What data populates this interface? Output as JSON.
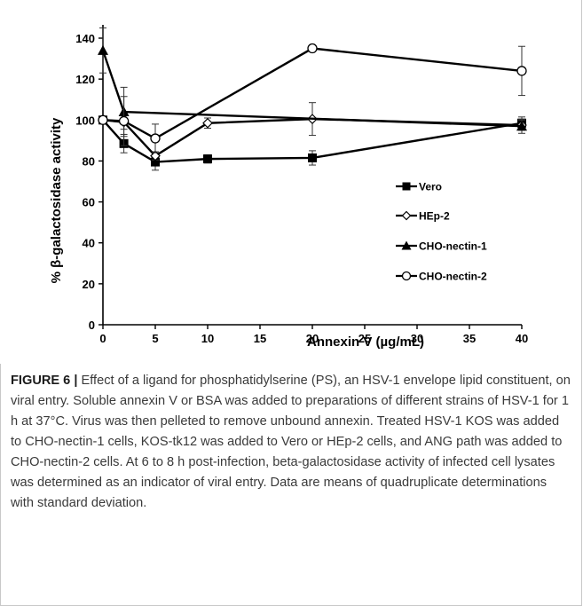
{
  "figure": {
    "label": "FIGURE 6 |",
    "caption": " Effect of a ligand for phosphatidylserine (PS), an HSV-1 envelope lipid constituent, on viral entry. Soluble annexin V or BSA was added to preparations of different strains of HSV-1 for 1 h at 37°C. Virus was then pelleted to remove unbound annexin. Treated HSV-1 KOS was added to CHO-nectin-1 cells, KOS-tk12 was added to Vero or HEp-2 cells, and ANG path was added to CHO-nectin-2 cells. At 6 to 8 h post-infection, beta-galactosidase activity of infected cell lysates was determined as an indicator of viral entry. Data are means of quadruplicate determinations with standard deviation."
  },
  "chart_data": {
    "type": "line",
    "title": "",
    "xlabel": "Annexin V (µg/mL)",
    "ylabel": "% β-galactosidase activity",
    "xlim": [
      0,
      40
    ],
    "ylim": [
      0,
      140
    ],
    "x_ticks": [
      0,
      5,
      10,
      15,
      20,
      25,
      30,
      35,
      40
    ],
    "y_ticks": [
      0,
      20,
      40,
      60,
      80,
      100,
      120,
      140
    ],
    "grid": false,
    "legend_position": "right",
    "series": [
      {
        "name": "Vero",
        "marker": "filled-square",
        "x": [
          0,
          2,
          5,
          10,
          20,
          40
        ],
        "y": [
          100,
          88.5,
          79.5,
          81,
          81.5,
          98.5
        ],
        "err": [
          0,
          4.5,
          4,
          2,
          3.5,
          3
        ]
      },
      {
        "name": "HEp-2",
        "marker": "open-diamond",
        "x": [
          0,
          2,
          5,
          10,
          20,
          40
        ],
        "y": [
          100,
          99,
          82.5,
          98.5,
          100.5,
          97.5
        ],
        "err": [
          0,
          3.5,
          2,
          2.5,
          8,
          2.5
        ]
      },
      {
        "name": "CHO-nectin-1",
        "marker": "filled-triangle",
        "x": [
          0,
          2,
          40
        ],
        "y": [
          134,
          104,
          97
        ],
        "err": [
          11,
          12,
          3.5
        ]
      },
      {
        "name": "CHO-nectin-2",
        "marker": "open-circle",
        "x": [
          0,
          2,
          5,
          20,
          40
        ],
        "y": [
          100,
          99.5,
          91,
          135,
          124
        ],
        "err": [
          0,
          12,
          7,
          0,
          12
        ]
      }
    ]
  }
}
